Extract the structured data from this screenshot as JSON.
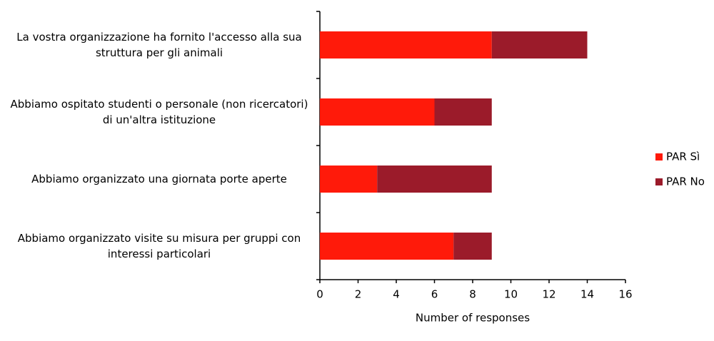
{
  "chart_data": {
    "type": "bar",
    "orientation": "horizontal",
    "stacked": true,
    "categories": [
      "La vostra organizzazione ha fornito l'accesso alla sua struttura per gli animali",
      "Abbiamo ospitato studenti o personale (non ricercatori) di un'altra istituzione",
      "Abbiamo organizzato una giornata porte aperte",
      "Abbiamo organizzato visite su misura per gruppi con interessi particolari"
    ],
    "series": [
      {
        "name": "PAR Sì",
        "color": "#ff1a0a",
        "values": [
          9,
          6,
          3,
          7
        ]
      },
      {
        "name": "PAR No",
        "color": "#9b1b2a",
        "values": [
          5,
          3,
          6,
          2
        ]
      }
    ],
    "xlabel": "Number of responses",
    "xlim": [
      0,
      16
    ],
    "xticks": [
      0,
      2,
      4,
      6,
      8,
      10,
      12,
      14,
      16
    ],
    "legend": "right",
    "grid": false
  }
}
